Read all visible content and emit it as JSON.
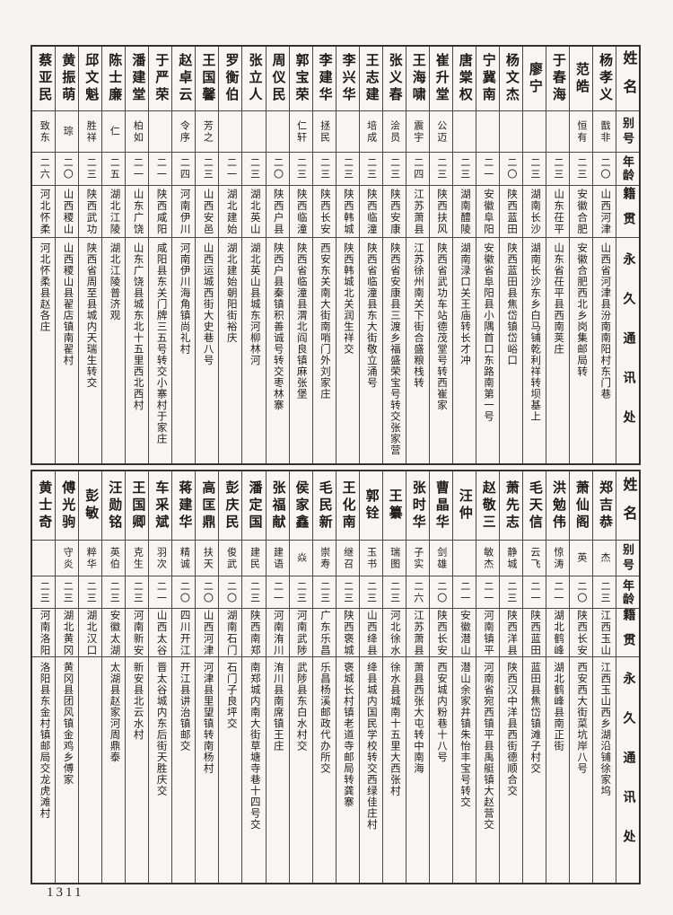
{
  "page": {
    "number": "1311",
    "paper_color": "#f5f4f0",
    "ink_color": "#1d1c1a"
  },
  "headers": {
    "name": "姓名",
    "alias": "别号",
    "age": "年龄",
    "origin": "籍贯",
    "address": "永久通讯处"
  },
  "blocks": [
    {
      "people": [
        {
          "name": "杨孝义",
          "alias": "戬非",
          "age": "二〇",
          "origin": "山西河津",
          "address": "山西省河津县汾南南阳村东门巷"
        },
        {
          "name": "范皓",
          "alias": "恒有",
          "age": "二三",
          "origin": "安徽合肥",
          "address": "安徽合肥西北乡岗集邮局转"
        },
        {
          "name": "于春海",
          "alias": "",
          "age": "二三",
          "origin": "山东茌平",
          "address": "山东省茌平县西南荚庄"
        },
        {
          "name": "廖宁",
          "alias": "",
          "age": "二三",
          "origin": "湖南长沙",
          "address": "湖南长沙东乡白马铺乾利祥转坝基上"
        },
        {
          "name": "杨文杰",
          "alias": "",
          "age": "二〇",
          "origin": "陕西蓝田",
          "address": "陕西蓝田县焦岱镇岱峪口"
        },
        {
          "name": "宁冀南",
          "alias": "",
          "age": "二一",
          "origin": "安徽阜阳",
          "address": "安徽省阜阳县小隅首口东路南第一号"
        },
        {
          "name": "唐棠权",
          "alias": "",
          "age": "二三",
          "origin": "湖南醴陵",
          "address": "湖南渌口关王庙转长才冲"
        },
        {
          "name": "崔升堂",
          "alias": "公迈",
          "age": "二三",
          "origin": "陕西扶风",
          "address": "陕西省武功车站德茂堂号转西崔家"
        },
        {
          "name": "王海啸",
          "alias": "震宇",
          "age": "二四",
          "origin": "江苏萧县",
          "address": "江苏徐州南关下街合盛粮栈转"
        },
        {
          "name": "张义春",
          "alias": "浍员",
          "age": "二三",
          "origin": "陕西安康",
          "address": "陕西省安康县三渡乡福盛荣宝号转交张家营"
        },
        {
          "name": "王志建",
          "alias": "培成",
          "age": "二三",
          "origin": "陕西临潼",
          "address": "陕西省临潼县东大街敬立涌号"
        },
        {
          "name": "李兴华",
          "alias": "",
          "age": "二三",
          "origin": "陕西韩城",
          "address": "陕西韩城北关润生祥交"
        },
        {
          "name": "李建华",
          "alias": "拯民",
          "age": "二三",
          "origin": "陕西长安",
          "address": "西安东关南大街南哨门外刘家庄"
        },
        {
          "name": "郭宝荣",
          "alias": "仁轩",
          "age": "二三",
          "origin": "陕西临潼",
          "address": "陕西省临潼县渭北阎良镇麻张堡"
        },
        {
          "name": "周仪民",
          "alias": "",
          "age": "二〇",
          "origin": "陕西户县",
          "address": "陕西户县秦镇积善诚号转交枣林寨"
        },
        {
          "name": "张立人",
          "alias": "",
          "age": "二三",
          "origin": "湖北英山",
          "address": "湖北英山县城东河柳林河"
        },
        {
          "name": "罗衡伯",
          "alias": "",
          "age": "二一",
          "origin": "湖北建始",
          "address": "湖北建始朝阳街裕庆"
        },
        {
          "name": "王国馨",
          "alias": "芳之",
          "age": "二三",
          "origin": "山西安邑",
          "address": "山西运城西街大史巷八号"
        },
        {
          "name": "赵卓云",
          "alias": "令序",
          "age": "二四",
          "origin": "河南伊川",
          "address": "河南伊川海角镇尚礼村"
        },
        {
          "name": "于严荣",
          "alias": "",
          "age": "二一",
          "origin": "陕西咸阳",
          "address": "咸阳县东关门牌三五号转交小寨村于家庄"
        },
        {
          "name": "潘建堂",
          "alias": "柏如",
          "age": "二一",
          "origin": "山东广饶",
          "address": "山东广饶县城东北十五里西北西村"
        },
        {
          "name": "陈士廉",
          "alias": "仁",
          "age": "二五",
          "origin": "湖北江陵",
          "address": "湖北江陵普济观"
        },
        {
          "name": "邱文魁",
          "alias": "胜祥",
          "age": "二三",
          "origin": "陕西武功",
          "address": "陕西省周至县城内天瑞生转交"
        },
        {
          "name": "黄振萌",
          "alias": "琮",
          "age": "二〇",
          "origin": "山西稷山",
          "address": "山西稷山县翟店镇南翟村"
        },
        {
          "name": "蔡亚民",
          "alias": "致东",
          "age": "二六",
          "origin": "河北怀柔",
          "address": "河北怀柔县赵各庄"
        }
      ]
    },
    {
      "people": [
        {
          "name": "郑吉恭",
          "alias": "杰",
          "age": "二三",
          "origin": "江西玉山",
          "address": "江西玉山西乡湖沿铺徐家坞"
        },
        {
          "name": "萧仙阁",
          "alias": "英",
          "age": "二〇",
          "origin": "陕西长安",
          "address": "西安西大街菜坑岸八号"
        },
        {
          "name": "洪勉伟",
          "alias": "惊涛",
          "age": "二一",
          "origin": "湖北鹤峰",
          "address": "湖北鹤峰县南正街"
        },
        {
          "name": "毛天信",
          "alias": "云飞",
          "age": "二一",
          "origin": "陕西蓝田",
          "address": "蓝田县焦岱镇滩子村交"
        },
        {
          "name": "萧先志",
          "alias": "静城",
          "age": "二三",
          "origin": "陕西洋县",
          "address": "陕西汉中洋县西街德顺合交"
        },
        {
          "name": "赵敬三",
          "alias": "敏杰",
          "age": "二一",
          "origin": "河南镇平",
          "address": "河南省宛西镇平县禹艇镇大赵营交"
        },
        {
          "name": "汪仲",
          "alias": "",
          "age": "二一",
          "origin": "安徽潜山",
          "address": "潜山余家井镇朱怡丰宝号转交"
        },
        {
          "name": "曹晶华",
          "alias": "剑雄",
          "age": "二〇",
          "origin": "陕西长安",
          "address": "西安城内粉巷十八号"
        },
        {
          "name": "张时华",
          "alias": "子实",
          "age": "二六",
          "origin": "江苏萧县",
          "address": "萧县西张大屯转中南海"
        },
        {
          "name": "王纂",
          "alias": "瑞图",
          "age": "二三",
          "origin": "河北徐水",
          "address": "徐水县城南十五里大西张村"
        },
        {
          "name": "郭铨",
          "alias": "玉书",
          "age": "二三",
          "origin": "山西绛县",
          "address": "绛县城内国民学校转交西绿佳庄村"
        },
        {
          "name": "王化南",
          "alias": "继召",
          "age": "二三",
          "origin": "陕西褒城",
          "address": "褒城长村镇老道寺邮局转龚寨"
        },
        {
          "name": "毛民新",
          "alias": "崇寿",
          "age": "二三",
          "origin": "广东乐昌",
          "address": "乐昌杨溪邮政代办所交"
        },
        {
          "name": "侯家鑫",
          "alias": "焱",
          "age": "二三",
          "origin": "河南武陟",
          "address": "武陟县东白水村交"
        },
        {
          "name": "张福献",
          "alias": "建语",
          "age": "二一",
          "origin": "河南洧川",
          "address": "洧川县南席镇王庄"
        },
        {
          "name": "潘定国",
          "alias": "建民",
          "age": "二三",
          "origin": "陕西南郑",
          "address": "南郑城内南大街草塘寺巷十四号交"
        },
        {
          "name": "彭庆民",
          "alias": "俊武",
          "age": "二〇",
          "origin": "湖南石门",
          "address": "石门子良坪交"
        },
        {
          "name": "高匡鼎",
          "alias": "扶天",
          "age": "二〇",
          "origin": "山西河津",
          "address": "河津县里望镇转南杨村"
        },
        {
          "name": "蒋建华",
          "alias": "精诚",
          "age": "二〇",
          "origin": "四川开江",
          "address": "开江县讲治镇邮交"
        },
        {
          "name": "车采斌",
          "alias": "羽次",
          "age": "二一",
          "origin": "山西太谷",
          "address": "晋太谷城内东后街天胜庆交"
        },
        {
          "name": "王国卿",
          "alias": "克生",
          "age": "二三",
          "origin": "河南新安",
          "address": "新安县北云水村"
        },
        {
          "name": "汪勋铭",
          "alias": "英伯",
          "age": "二三",
          "origin": "安徽太湖",
          "address": "太湖县赵家河周鼎泰"
        },
        {
          "name": "彭敏",
          "alias": "粹华",
          "age": "二三",
          "origin": "湖北汉口",
          "address": ""
        },
        {
          "name": "傅光驹",
          "alias": "守炎",
          "age": "二三",
          "origin": "湖北黄冈",
          "address": "黄冈县团风镇金鸡乡傅家"
        },
        {
          "name": "黄士奇",
          "alias": "",
          "age": "二三",
          "origin": "河南洛阳",
          "address": "洛阳县东金村镇邮局交龙虎滩村"
        }
      ]
    }
  ]
}
